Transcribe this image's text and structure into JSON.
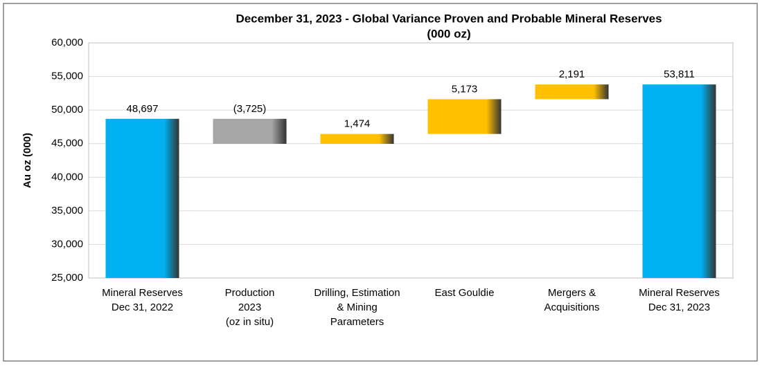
{
  "chart_data": {
    "type": "waterfall",
    "title": "December 31, 2023 - Global Variance Proven and Probable Mineral Reserves",
    "subtitle": "(000 oz)",
    "y_label": "Au oz (000)",
    "categories": [
      [
        "Mineral Reserves",
        "Dec 31, 2022"
      ],
      [
        "Production",
        "2023",
        "(oz in situ)"
      ],
      [
        "Drilling, Estimation",
        "& Mining",
        "Parameters"
      ],
      [
        "East Gouldie"
      ],
      [
        "Mergers &",
        "Acquisitions"
      ],
      [
        "Mineral Reserves",
        "Dec 31, 2023"
      ]
    ],
    "values": [
      48697,
      -3725,
      1474,
      5173,
      2191,
      53811
    ],
    "value_labels": [
      "48,697",
      "(3,725)",
      "1,474",
      "5,173",
      "2,191",
      "53,811"
    ],
    "totals": [
      0,
      5
    ],
    "colors": [
      "#00b0f0",
      "#a6a6a6",
      "#ffc000",
      "#ffc000",
      "#ffc000",
      "#00b0f0"
    ],
    "ylim": [
      25000,
      60000
    ],
    "yticks": [
      {
        "value": 25000,
        "label": "25,000"
      },
      {
        "value": 30000,
        "label": "30,000"
      },
      {
        "value": 35000,
        "label": "35,000"
      },
      {
        "value": 40000,
        "label": "40,000"
      },
      {
        "value": 45000,
        "label": "45,000"
      },
      {
        "value": 50000,
        "label": "50,000"
      },
      {
        "value": 55000,
        "label": "55,000"
      },
      {
        "value": 60000,
        "label": "60,000"
      }
    ],
    "grid": true
  }
}
